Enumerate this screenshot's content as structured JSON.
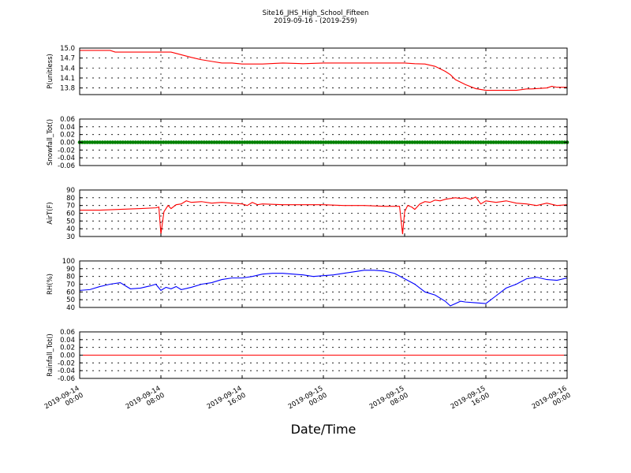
{
  "figure": {
    "title": "Site16_JHS_High_School_Fifteen",
    "subtitle": "2019-09-16 - (2019-259)",
    "xlabel": "Date/Time",
    "x_ticks": [
      {
        "label": "2019-09-14\n00:00",
        "value": 0
      },
      {
        "label": "2019-09-14\n08:00",
        "value": 8
      },
      {
        "label": "2019-09-14\n16:00",
        "value": 16
      },
      {
        "label": "2019-09-15\n00:00",
        "value": 24
      },
      {
        "label": "2019-09-15\n08:00",
        "value": 32
      },
      {
        "label": "2019-09-15\n16:00",
        "value": 40
      },
      {
        "label": "2019-09-16\n00:00",
        "value": 48
      }
    ],
    "xlim": [
      0,
      48
    ]
  },
  "chart_data": [
    {
      "type": "line",
      "ylabel": "P(unitless)",
      "ylim": [
        13.6,
        15.0
      ],
      "yticks": [
        13.8,
        14.1,
        14.4,
        14.7,
        15.0
      ],
      "tick_decimals": 1,
      "color": "#ff0000",
      "grid": true,
      "x": [
        0,
        3,
        3.5,
        9,
        10,
        11,
        12,
        13,
        14,
        15,
        16,
        17,
        18,
        20,
        22,
        24,
        25,
        27,
        30,
        32,
        33,
        34,
        35,
        36,
        36.5,
        37,
        38,
        39,
        40,
        41,
        42,
        43,
        44,
        44.5,
        46,
        46.5,
        47,
        48
      ],
      "y": [
        14.93,
        14.93,
        14.88,
        14.88,
        14.8,
        14.72,
        14.65,
        14.6,
        14.55,
        14.55,
        14.52,
        14.52,
        14.52,
        14.55,
        14.53,
        14.55,
        14.55,
        14.55,
        14.55,
        14.55,
        14.53,
        14.52,
        14.45,
        14.3,
        14.2,
        14.05,
        13.9,
        13.78,
        13.73,
        13.73,
        13.73,
        13.73,
        13.77,
        13.77,
        13.8,
        13.85,
        13.82,
        13.82
      ]
    },
    {
      "type": "scatter",
      "ylabel": "Snowfall_Tot()",
      "ylim": [
        -0.06,
        0.06
      ],
      "yticks": [
        -0.06,
        -0.04,
        -0.02,
        0.0,
        0.02,
        0.04,
        0.06
      ],
      "tick_decimals": 2,
      "color": "#008000",
      "grid": true,
      "x_start": 0,
      "x_end": 48,
      "x_step": 0.25,
      "y_value": 0.0
    },
    {
      "type": "line",
      "ylabel": "AirT(F)",
      "ylim": [
        30,
        90
      ],
      "yticks": [
        30,
        40,
        50,
        60,
        70,
        80,
        90
      ],
      "tick_decimals": 0,
      "color": "#ff0000",
      "grid": true,
      "x": [
        0,
        2,
        4,
        6,
        7.5,
        7.8,
        8,
        8.3,
        8.7,
        9,
        9.5,
        10,
        10.5,
        11,
        12,
        13,
        14,
        15,
        16,
        16.5,
        17,
        17.5,
        18,
        20,
        22,
        24,
        26,
        28,
        30,
        31.5,
        31.8,
        32,
        32.3,
        32.7,
        33,
        33.5,
        34,
        34.5,
        35,
        35.5,
        36,
        37,
        37.5,
        38,
        38.5,
        39,
        39.5,
        40,
        41,
        42,
        43,
        44,
        45,
        46,
        47,
        48
      ],
      "y": [
        64,
        64,
        65,
        66,
        67,
        68,
        33,
        62,
        70,
        66,
        71,
        72,
        76,
        74,
        75,
        73,
        74,
        73,
        72,
        70,
        74,
        71,
        72,
        71,
        71,
        71,
        70,
        70,
        69,
        69,
        33,
        62,
        70,
        68,
        65,
        72,
        75,
        74,
        77,
        76,
        78,
        80,
        79,
        80,
        78,
        81,
        72,
        76,
        74,
        76,
        73,
        72,
        70,
        73,
        70,
        71
      ]
    },
    {
      "type": "line",
      "ylabel": "RH(%)",
      "ylim": [
        40,
        100
      ],
      "yticks": [
        40,
        50,
        60,
        70,
        80,
        90,
        100
      ],
      "tick_decimals": 0,
      "color": "#0000ff",
      "grid": true,
      "x": [
        0,
        1,
        2,
        3,
        4,
        4.5,
        5,
        6,
        7,
        7.5,
        8,
        8.5,
        9,
        9.5,
        10,
        11,
        12,
        13,
        14,
        15,
        16,
        17,
        18,
        19,
        20,
        21,
        22,
        23,
        24,
        25,
        26,
        27,
        28,
        29,
        30,
        31,
        32,
        33,
        33.5,
        34,
        35,
        36,
        36.5,
        37,
        37.5,
        38,
        39,
        40,
        41,
        42,
        43,
        44,
        45,
        46,
        47,
        48
      ],
      "y": [
        62,
        63,
        67,
        70,
        72,
        68,
        64,
        65,
        68,
        70,
        62,
        66,
        64,
        67,
        63,
        66,
        70,
        72,
        76,
        78,
        78,
        80,
        83,
        84,
        84,
        83,
        82,
        80,
        81,
        82,
        84,
        86,
        88,
        88,
        87,
        84,
        77,
        70,
        65,
        60,
        56,
        48,
        42,
        45,
        48,
        47,
        46,
        45,
        55,
        65,
        70,
        77,
        79,
        76,
        75,
        78
      ]
    },
    {
      "type": "line",
      "ylabel": "Rainfall_Tot()",
      "ylim": [
        -0.06,
        0.06
      ],
      "yticks": [
        -0.06,
        -0.04,
        -0.02,
        0.0,
        0.02,
        0.04,
        0.06
      ],
      "tick_decimals": 2,
      "color": "#ff0000",
      "grid": true,
      "x": [
        0,
        48
      ],
      "y": [
        0.0,
        0.0
      ]
    }
  ]
}
